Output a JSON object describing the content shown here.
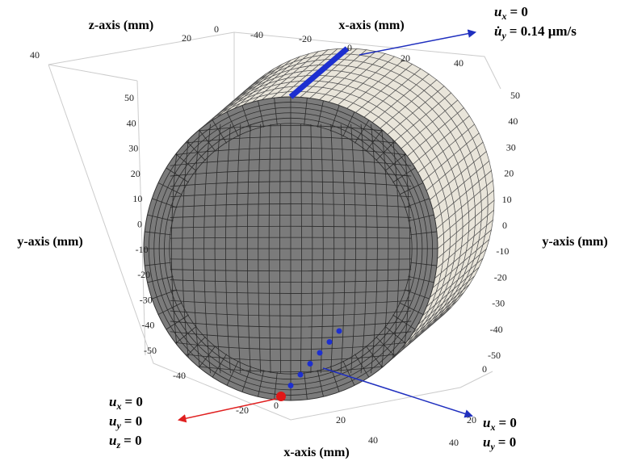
{
  "axis_labels": {
    "z_top": "z-axis (mm)",
    "x_top": "x-axis (mm)",
    "y_left": "y-axis (mm)",
    "y_right": "y-axis (mm)",
    "x_bottom": "x-axis (mm)"
  },
  "ticks": {
    "z_top": [
      40,
      20,
      0
    ],
    "x_top": [
      -40,
      -20,
      0,
      20,
      40
    ],
    "y_left": [
      50,
      40,
      30,
      20,
      10,
      0,
      -10,
      -20,
      -30,
      -40,
      -50
    ],
    "y_right": [
      50,
      40,
      30,
      20,
      10,
      0,
      -10,
      -20,
      -30,
      -40,
      -50
    ],
    "z_bottom": [
      0,
      20,
      40
    ],
    "x_bottom": [
      -40,
      -20,
      0,
      20,
      40
    ]
  },
  "boundary_conditions": {
    "top_right": [
      {
        "symbol": "u",
        "sub": "x",
        "rest": "= 0"
      },
      {
        "symbol": "u̇",
        "sub": "y",
        "rest": "= 0.14 μm/s"
      }
    ],
    "bottom_left": [
      {
        "symbol": "u",
        "sub": "x",
        "rest": "= 0"
      },
      {
        "symbol": "u",
        "sub": "y",
        "rest": "= 0"
      },
      {
        "symbol": "u",
        "sub": "z",
        "rest": "= 0"
      }
    ],
    "bottom_right": [
      {
        "symbol": "u",
        "sub": "x",
        "rest": "= 0"
      },
      {
        "symbol": "u",
        "sub": "y",
        "rest": "= 0"
      }
    ]
  }
}
